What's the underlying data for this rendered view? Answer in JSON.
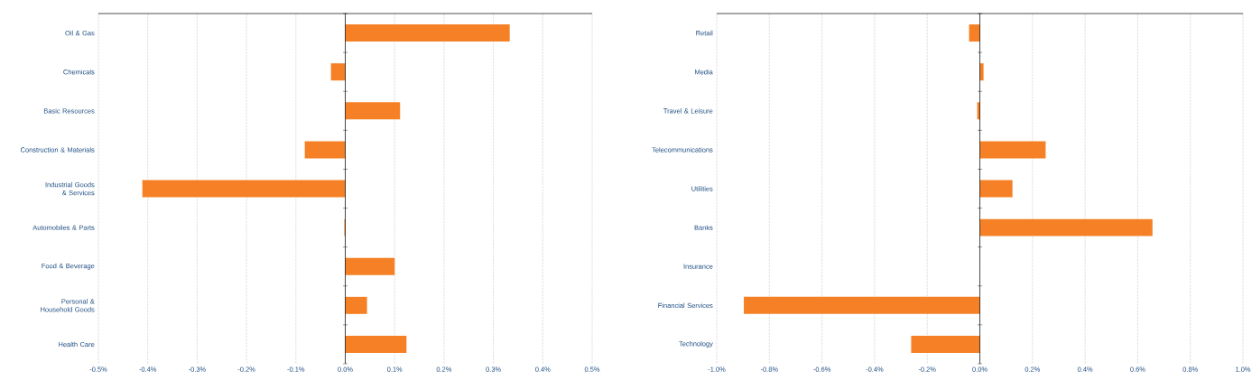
{
  "chart_data": [
    {
      "type": "bar",
      "orientation": "horizontal",
      "color": "#f58025",
      "grid": "x",
      "categories": [
        "Oil & Gas",
        "Chemicals",
        "Basic Resources",
        "Construction & Materials",
        "Industrial Goods & Services",
        "Automobiles & Parts",
        "Food & Beverage",
        "Personal & Household Goods",
        "Health Care"
      ],
      "values": [
        0.333,
        -0.029,
        0.111,
        -0.082,
        -0.411,
        -0.002,
        0.1,
        0.044,
        0.124
      ],
      "xlim": [
        -0.5,
        0.5
      ],
      "xticks": [
        {
          "value": -0.5,
          "label": "-0.5%"
        },
        {
          "value": -0.4,
          "label": "-0.4%"
        },
        {
          "value": -0.3,
          "label": "-0.3%"
        },
        {
          "value": -0.2,
          "label": "-0.2%"
        },
        {
          "value": -0.1,
          "label": "-0.1%"
        },
        {
          "value": 0,
          "label": "0.0%"
        },
        {
          "value": 0.1,
          "label": "0.1%"
        },
        {
          "value": 0.2,
          "label": "0.2%"
        },
        {
          "value": 0.3,
          "label": "0.3%"
        },
        {
          "value": 0.4,
          "label": "0.4%"
        },
        {
          "value": 0.5,
          "label": "0.5%"
        }
      ]
    },
    {
      "type": "bar",
      "orientation": "horizontal",
      "color": "#f58025",
      "grid": "x",
      "categories": [
        "Retail",
        "Media",
        "Travel & Leisure",
        "Telecommunications",
        "Utilities",
        "Banks",
        "Insurance",
        "Financial Services",
        "Technology"
      ],
      "values": [
        -0.041,
        0.014,
        -0.01,
        0.25,
        0.124,
        0.656,
        0,
        -0.897,
        -0.261
      ],
      "xlim": [
        -1.0,
        1.0
      ],
      "xticks": [
        {
          "value": -1.0,
          "label": "-1.0%"
        },
        {
          "value": -0.8,
          "label": "-0.8%"
        },
        {
          "value": -0.6,
          "label": "-0.6%"
        },
        {
          "value": -0.4,
          "label": "-0.4%"
        },
        {
          "value": -0.2,
          "label": "-0.2%"
        },
        {
          "value": 0,
          "label": "0.0%"
        },
        {
          "value": 0.2,
          "label": "0.2%"
        },
        {
          "value": 0.4,
          "label": "0.4%"
        },
        {
          "value": 0.6,
          "label": "0.6%"
        },
        {
          "value": 0.8,
          "label": "0.8%"
        },
        {
          "value": 1.0,
          "label": "1.0%"
        }
      ]
    }
  ]
}
